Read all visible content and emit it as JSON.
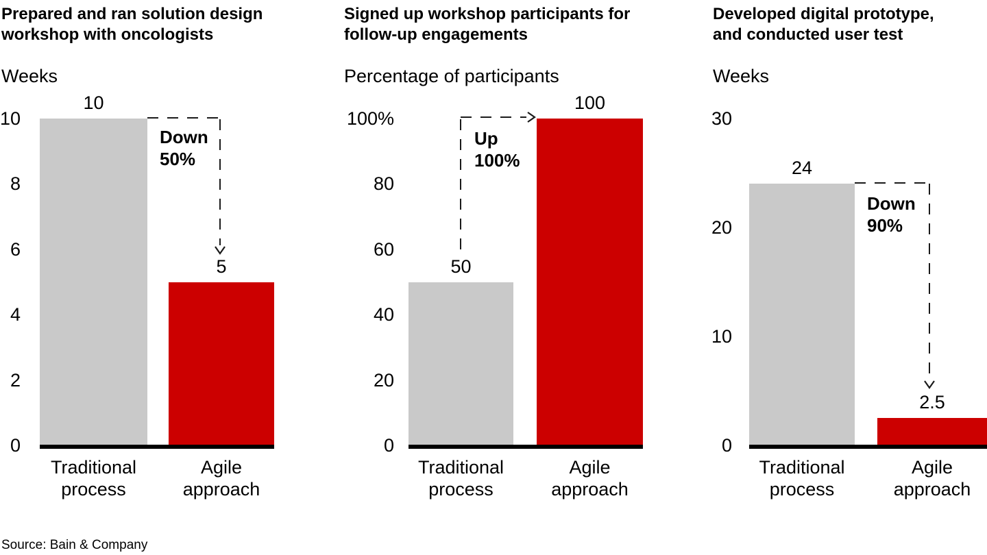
{
  "source": "Source: Bain & Company",
  "colors": {
    "traditional_bar": "#c9c9c9",
    "agile_bar": "#cc0000",
    "axis": "#000000",
    "arrow": "#1a1a1a"
  },
  "chart_data": [
    {
      "type": "bar",
      "title": "Prepared and ran solution design\nworkshop with oncologists",
      "ylabel": "Weeks",
      "xlabel": "",
      "categories": [
        "Traditional\nprocess",
        "Agile\napproach"
      ],
      "values": [
        10,
        5
      ],
      "value_labels": [
        "10",
        "5"
      ],
      "ylim": [
        0,
        10
      ],
      "ytick_labels": [
        "10",
        "8",
        "6",
        "4",
        "2",
        "0"
      ],
      "ytick_values": [
        10,
        8,
        6,
        4,
        2,
        0
      ],
      "grid": false,
      "legend": "none",
      "annotation": {
        "text": "Down\n50%",
        "arrow_direction": "down"
      }
    },
    {
      "type": "bar",
      "title": "Signed up workshop participants for\nfollow-up engagements",
      "ylabel": "Percentage of participants",
      "xlabel": "",
      "categories": [
        "Traditional\nprocess",
        "Agile\napproach"
      ],
      "values": [
        50,
        100
      ],
      "value_labels": [
        "50",
        "100"
      ],
      "ylim": [
        0,
        100
      ],
      "ytick_labels": [
        "100%",
        "80",
        "60",
        "40",
        "20",
        "0"
      ],
      "ytick_values": [
        100,
        80,
        60,
        40,
        20,
        0
      ],
      "grid": false,
      "legend": "none",
      "annotation": {
        "text": "Up\n100%",
        "arrow_direction": "up-right"
      }
    },
    {
      "type": "bar",
      "title": "Developed digital prototype,\nand conducted user test",
      "ylabel": "Weeks",
      "xlabel": "",
      "categories": [
        "Traditional\nprocess",
        "Agile\napproach"
      ],
      "values": [
        24,
        2.5
      ],
      "value_labels": [
        "24",
        "2.5"
      ],
      "ylim": [
        0,
        30
      ],
      "ytick_labels": [
        "30",
        "20",
        "10",
        "0"
      ],
      "ytick_values": [
        30,
        20,
        10,
        0
      ],
      "grid": false,
      "legend": "none",
      "annotation": {
        "text": "Down\n90%",
        "arrow_direction": "down"
      }
    }
  ]
}
